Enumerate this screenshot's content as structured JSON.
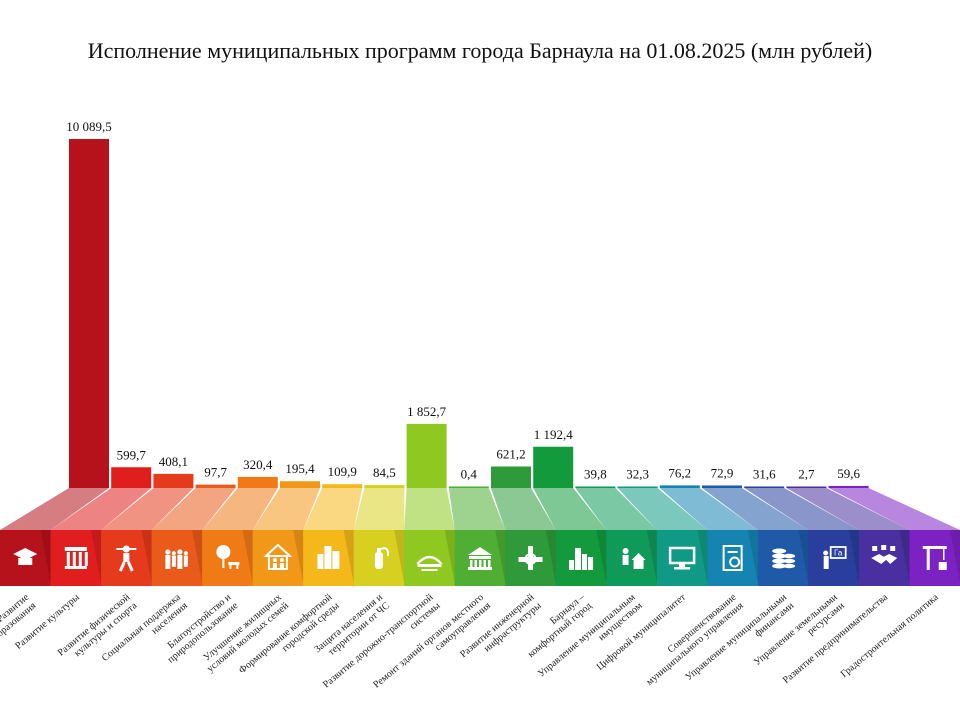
{
  "chart_data": {
    "type": "bar",
    "title": "Исполнение муниципальных программ города Барнаула на 01.08.2025 (млн рублей)",
    "xlabel": "",
    "ylabel": "",
    "ylim": [
      0,
      10089.5
    ],
    "categories": [
      [
        "Развитие",
        "образования"
      ],
      [
        "Развитие культуры"
      ],
      [
        "Развитие физической",
        "культуры и спорта"
      ],
      [
        "Социальная поддержка",
        "населения"
      ],
      [
        "Благоустройство и",
        "природопользование"
      ],
      [
        "Улучшение жилищных",
        "условий молодых семей"
      ],
      [
        "Формирование комфортной",
        "городской среды"
      ],
      [
        "Защита населения и",
        "территории от ЧС"
      ],
      [
        "Развитие дорожно-транспортной",
        "системы"
      ],
      [
        "Ремонт зданий органов местного",
        "самоуправления"
      ],
      [
        "Развитие инженерной",
        "инфраструктуры"
      ],
      [
        "Барнаул –",
        "комфортный город"
      ],
      [
        "Управление муниципальным",
        "имуществом"
      ],
      [
        "Цифровой муниципалитет"
      ],
      [
        "Совершенствование",
        "муниципального управления"
      ],
      [
        "Управление муниципальными",
        "финансами"
      ],
      [
        "Управление земельными",
        "ресурсами"
      ],
      [
        "Развитие предпринимательства"
      ],
      [
        "Градостроительная политика"
      ]
    ],
    "values": [
      10089.5,
      599.7,
      408.1,
      97.7,
      320.4,
      195.4,
      109.9,
      84.5,
      1852.7,
      0.4,
      621.2,
      1192.4,
      39.8,
      32.3,
      76.2,
      72.9,
      31.6,
      2.7,
      59.6
    ],
    "value_labels": [
      "10 089,5",
      "599,7",
      "408,1",
      "97,7",
      "320,4",
      "195,4",
      "109,9",
      "84,5",
      "1 852,7",
      "0,4",
      "621,2",
      "1 192,4",
      "39,8",
      "32,3",
      "76,2",
      "72,9",
      "31,6",
      "2,7",
      "59,6"
    ],
    "colors": [
      "#b5121b",
      "#e01e1e",
      "#e63a1c",
      "#ea5a1a",
      "#ef7a16",
      "#f29818",
      "#f4b81a",
      "#d8d020",
      "#8ec820",
      "#4fae33",
      "#2e9a3a",
      "#139a3c",
      "#0f9a5a",
      "#109a86",
      "#1584b0",
      "#1f5aa8",
      "#2a3e9e",
      "#4a2fa0",
      "#7d22c2"
    ],
    "icons": [
      "graduation-cap-icon",
      "theater-icon",
      "athlete-icon",
      "family-icon",
      "tree-bench-icon",
      "house-family-icon",
      "city-buildings-icon",
      "fire-extinguisher-icon",
      "road-bridge-icon",
      "government-building-icon",
      "pipes-valve-icon",
      "city-skyline-icon",
      "person-house-icon",
      "computer-icon",
      "document-check-icon",
      "coins-stack-icon",
      "land-presentation-icon",
      "handshake-icon",
      "tower-crane-icon"
    ],
    "land_label": "Га",
    "legend": "none",
    "grid": false
  }
}
